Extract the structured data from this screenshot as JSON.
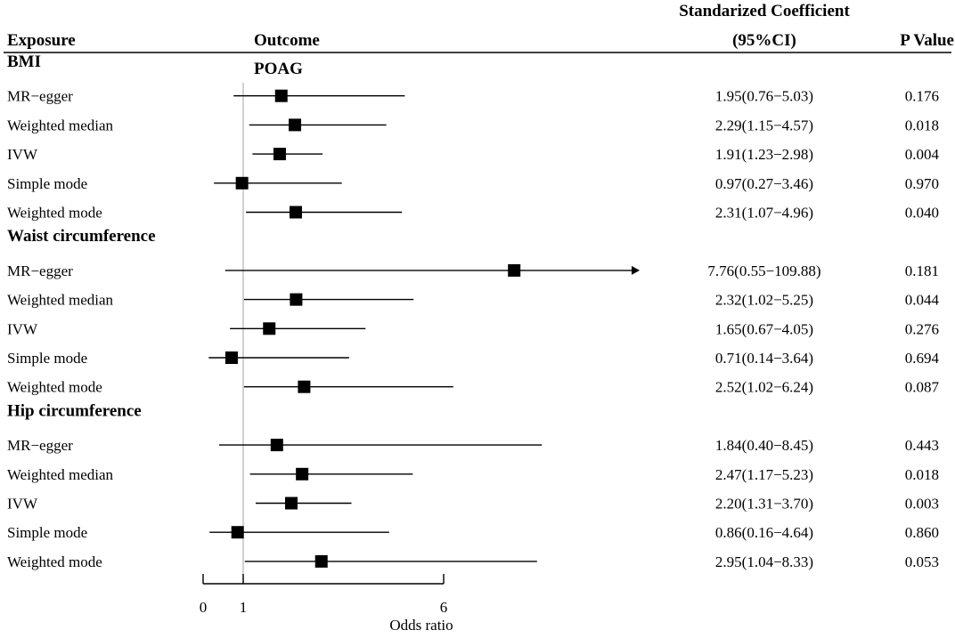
{
  "headers": {
    "exposure": "Exposure",
    "outcome": "Outcome",
    "outcome_value": "POAG",
    "coef_line1": "Standarized Coefficient",
    "coef_line2": "(95%CI)",
    "pvalue": "P Value"
  },
  "chart_data": {
    "type": "forest",
    "xlabel": "Odds ratio",
    "x_ticks": [
      "0",
      "1",
      "6"
    ],
    "x_tick_values": [
      0,
      1,
      6
    ],
    "reference_line": 1,
    "groups": [
      {
        "name": "BMI",
        "rows": [
          {
            "method": "MR−egger",
            "or": 1.95,
            "lo": 0.76,
            "hi": 5.03,
            "ci_text": "1.95(0.76−5.03)",
            "p": "0.176"
          },
          {
            "method": "Weighted median",
            "or": 2.29,
            "lo": 1.15,
            "hi": 4.57,
            "ci_text": "2.29(1.15−4.57)",
            "p": "0.018"
          },
          {
            "method": "IVW",
            "or": 1.91,
            "lo": 1.23,
            "hi": 2.98,
            "ci_text": "1.91(1.23−2.98)",
            "p": "0.004"
          },
          {
            "method": "Simple mode",
            "or": 0.97,
            "lo": 0.27,
            "hi": 3.46,
            "ci_text": "0.97(0.27−3.46)",
            "p": "0.970"
          },
          {
            "method": "Weighted mode",
            "or": 2.31,
            "lo": 1.07,
            "hi": 4.96,
            "ci_text": "2.31(1.07−4.96)",
            "p": "0.040"
          }
        ]
      },
      {
        "name": "Waist circumference",
        "rows": [
          {
            "method": "MR−egger",
            "or": 7.76,
            "lo": 0.55,
            "hi": 109.88,
            "ci_text": "7.76(0.55−109.88)",
            "p": "0.181",
            "truncated": true
          },
          {
            "method": "Weighted median",
            "or": 2.32,
            "lo": 1.02,
            "hi": 5.25,
            "ci_text": "2.32(1.02−5.25)",
            "p": "0.044"
          },
          {
            "method": "IVW",
            "or": 1.65,
            "lo": 0.67,
            "hi": 4.05,
            "ci_text": "1.65(0.67−4.05)",
            "p": "0.276"
          },
          {
            "method": "Simple mode",
            "or": 0.71,
            "lo": 0.14,
            "hi": 3.64,
            "ci_text": "0.71(0.14−3.64)",
            "p": "0.694"
          },
          {
            "method": "Weighted mode",
            "or": 2.52,
            "lo": 1.02,
            "hi": 6.24,
            "ci_text": "2.52(1.02−6.24)",
            "p": "0.087"
          }
        ]
      },
      {
        "name": "Hip circumference",
        "rows": [
          {
            "method": "MR−egger",
            "or": 1.84,
            "lo": 0.4,
            "hi": 8.45,
            "ci_text": "1.84(0.40−8.45)",
            "p": "0.443"
          },
          {
            "method": "Weighted median",
            "or": 2.47,
            "lo": 1.17,
            "hi": 5.23,
            "ci_text": "2.47(1.17−5.23)",
            "p": "0.018"
          },
          {
            "method": "IVW",
            "or": 2.2,
            "lo": 1.31,
            "hi": 3.7,
            "ci_text": "2.20(1.31−3.70)",
            "p": "0.003"
          },
          {
            "method": "Simple mode",
            "or": 0.86,
            "lo": 0.16,
            "hi": 4.64,
            "ci_text": "0.86(0.16−4.64)",
            "p": "0.860"
          },
          {
            "method": "Weighted mode",
            "or": 2.95,
            "lo": 1.04,
            "hi": 8.33,
            "ci_text": "2.95(1.04−8.33)",
            "p": "0.053"
          }
        ]
      }
    ]
  }
}
